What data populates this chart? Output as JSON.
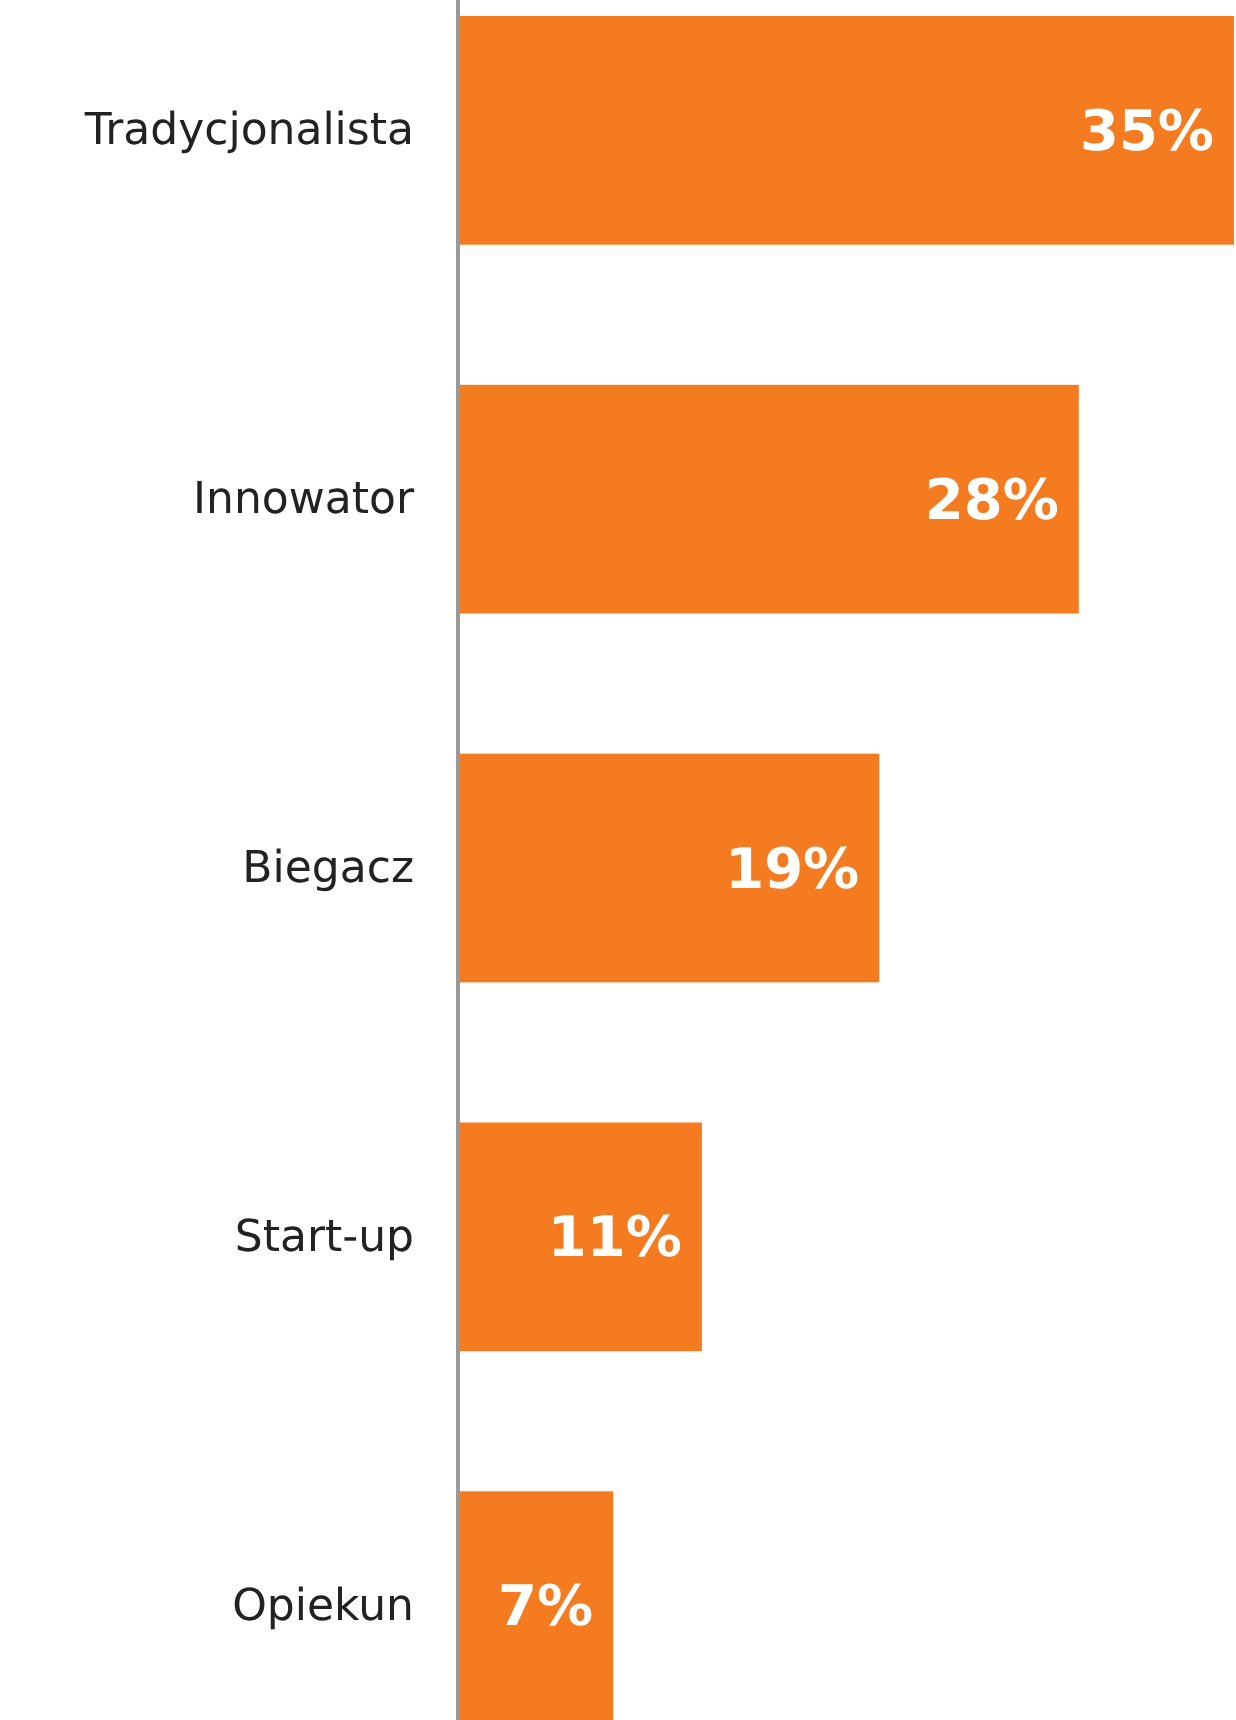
{
  "chart_data": {
    "type": "bar",
    "orientation": "horizontal",
    "categories": [
      "Tradycjonalista",
      "Innowator",
      "Biegacz",
      "Start-up",
      "Opiekun"
    ],
    "values": [
      35,
      28,
      19,
      11,
      7
    ],
    "value_labels": [
      "35%",
      "28%",
      "19%",
      "11%",
      "7%"
    ],
    "color": "#f47b20"
  }
}
